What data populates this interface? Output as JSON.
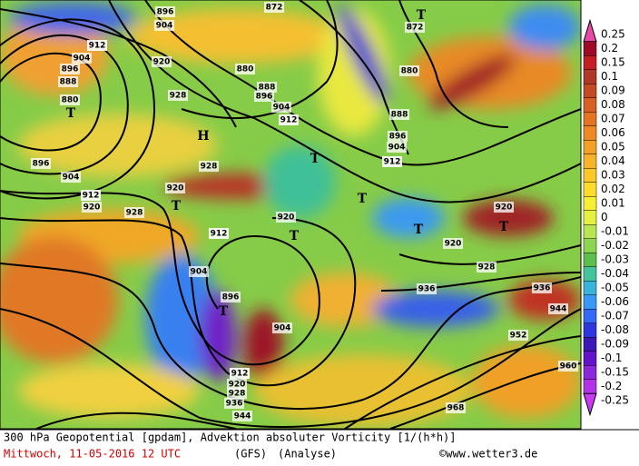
{
  "map": {
    "contour_labels": [
      "896",
      "904",
      "872",
      "872",
      "912",
      "904",
      "920",
      "896",
      "888",
      "880",
      "880",
      "888",
      "896",
      "904",
      "912",
      "880",
      "888",
      "896",
      "904",
      "912",
      "928",
      "928",
      "896",
      "904",
      "912",
      "920",
      "928",
      "920",
      "920",
      "920",
      "920",
      "928",
      "936",
      "936",
      "944",
      "952",
      "960",
      "968",
      "912",
      "904",
      "896",
      "904",
      "912",
      "920",
      "928",
      "936",
      "944"
    ],
    "markers": [
      "T",
      "H",
      "T",
      "T",
      "T",
      "T",
      "T",
      "T",
      "T",
      "T"
    ]
  },
  "legend": {
    "labels": [
      "0.25",
      "0.2",
      "0.15",
      "0.1",
      "0.09",
      "0.08",
      "0.07",
      "0.06",
      "0.05",
      "0.04",
      "0.03",
      "0.02",
      "0.01",
      "0",
      "-0.01",
      "-0.02",
      "-0.03",
      "-0.04",
      "-0.05",
      "-0.06",
      "-0.07",
      "-0.08",
      "-0.09",
      "-0.1",
      "-0.15",
      "-0.2",
      "-0.25"
    ],
    "colors": [
      "#e84aa8",
      "#9c0a28",
      "#c41e24",
      "#b03828",
      "#c44a24",
      "#d86024",
      "#e47424",
      "#ee8a24",
      "#f4a024",
      "#f8b428",
      "#fcc828",
      "#ffdc2c",
      "#f8ee34",
      "#e6f040",
      "#b8e650",
      "#8cd650",
      "#5cc04c",
      "#44c49c",
      "#38b4dc",
      "#3898f8",
      "#3468f8",
      "#2c38dc",
      "#3c18b4",
      "#6414c8",
      "#8c28dc",
      "#b432e6",
      "#c83cf0"
    ]
  },
  "footer": {
    "description": "300 hPa Geopotential [gpdam], Advektion absoluter Vorticity [1/(h*h)]",
    "date": "Mittwoch, 11-05-2016  12 UTC",
    "model": "(GFS)",
    "run": "(Analyse)",
    "copyright": "©www.wetter3.de"
  }
}
